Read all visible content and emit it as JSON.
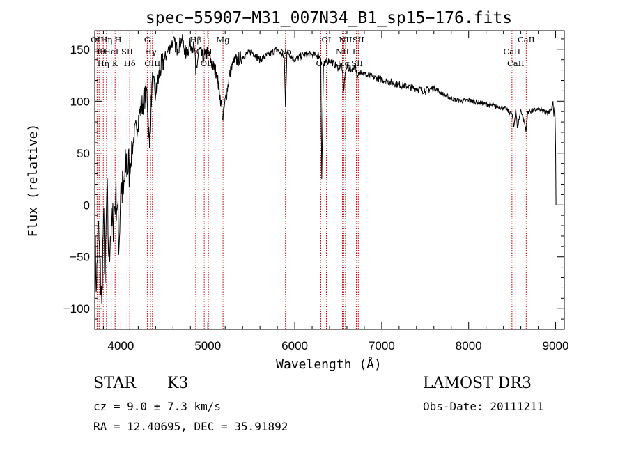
{
  "chart_data": {
    "type": "line",
    "title": "spec−55907−M31_007N34_B1_sp15−176.fits",
    "xlabel": "Wavelength (Å)",
    "ylabel": "Flux (relative)",
    "xlim": [
      3700,
      9100
    ],
    "ylim": [
      -120,
      168
    ],
    "xticks": [
      4000,
      5000,
      6000,
      7000,
      8000,
      9000
    ],
    "xtick_labels": [
      "4000",
      "5000",
      "6000",
      "7000",
      "8000",
      "9000"
    ],
    "yticks": [
      -100,
      -50,
      0,
      50,
      100,
      150
    ],
    "ytick_labels": [
      "−100",
      "−50",
      "0",
      "50",
      "100",
      "150"
    ],
    "grid": false,
    "series": [
      {
        "name": "flux",
        "color": "#000000",
        "x": [
          3700,
          3720,
          3740,
          3760,
          3780,
          3800,
          3820,
          3840,
          3860,
          3880,
          3900,
          3920,
          3940,
          3960,
          3980,
          4000,
          4030,
          4060,
          4100,
          4140,
          4180,
          4220,
          4260,
          4300,
          4330,
          4360,
          4400,
          4450,
          4500,
          4550,
          4600,
          4650,
          4700,
          4750,
          4800,
          4850,
          4861,
          4900,
          4950,
          5000,
          5050,
          5100,
          5150,
          5175,
          5190,
          5250,
          5300,
          5400,
          5500,
          5600,
          5700,
          5800,
          5880,
          5893,
          5910,
          6000,
          6100,
          6200,
          6280,
          6300,
          6310,
          6330,
          6400,
          6500,
          6540,
          6563,
          6580,
          6600,
          6650,
          6700,
          6717,
          6731,
          6760,
          6800,
          6900,
          7000,
          7100,
          7200,
          7300,
          7400,
          7500,
          7600,
          7700,
          7800,
          7900,
          8000,
          8100,
          8200,
          8300,
          8400,
          8498,
          8520,
          8542,
          8560,
          8600,
          8662,
          8680,
          8800,
          8900,
          8950,
          8970,
          8980,
          8990,
          8995,
          9000,
          9005
        ],
        "y": [
          -30,
          -80,
          -20,
          -60,
          -95,
          -10,
          -75,
          20,
          -50,
          -30,
          -20,
          -10,
          10,
          0,
          -40,
          20,
          10,
          40,
          35,
          60,
          75,
          90,
          100,
          110,
          55,
          120,
          105,
          130,
          140,
          150,
          158,
          150,
          160,
          145,
          155,
          150,
          125,
          150,
          140,
          148,
          135,
          128,
          100,
          82,
          95,
          125,
          138,
          143,
          148,
          140,
          145,
          150,
          142,
          95,
          148,
          140,
          145,
          145,
          144,
          140,
          25,
          135,
          140,
          132,
          136,
          110,
          128,
          133,
          130,
          135,
          120,
          125,
          130,
          126,
          123,
          121,
          118,
          116,
          114,
          112,
          110,
          113,
          107,
          103,
          100,
          101,
          99,
          97,
          95,
          94,
          88,
          75,
          93,
          74,
          92,
          72,
          90,
          92,
          89,
          92,
          100,
          85,
          95,
          80,
          55,
          0
        ]
      }
    ],
    "line_marks": [
      {
        "x": 3727,
        "label": "OII"
      },
      {
        "x": 3750,
        "label": "Hθ"
      },
      {
        "x": 3798,
        "label": "Hη"
      },
      {
        "x": 3835,
        "label": "Hη"
      },
      {
        "x": 3889,
        "label": "HeI"
      },
      {
        "x": 3934,
        "label": "K"
      },
      {
        "x": 3969,
        "label": "H"
      },
      {
        "x": 4072,
        "label": "SII"
      },
      {
        "x": 4102,
        "label": "Hδ"
      },
      {
        "x": 4304,
        "label": "G"
      },
      {
        "x": 4341,
        "label": "Hγ"
      },
      {
        "x": 4363,
        "label": "OIII"
      },
      {
        "x": 4861,
        "label": "Hβ"
      },
      {
        "x": 4959,
        "label": "OIII"
      },
      {
        "x": 5007,
        "label": "OIII"
      },
      {
        "x": 5175,
        "label": "Mg"
      },
      {
        "x": 5893,
        "label": "Na"
      },
      {
        "x": 6300,
        "label": "OI"
      },
      {
        "x": 6364,
        "label": "OI"
      },
      {
        "x": 6548,
        "label": "NII"
      },
      {
        "x": 6563,
        "label": "Hα"
      },
      {
        "x": 6583,
        "label": "NII"
      },
      {
        "x": 6708,
        "label": "Li"
      },
      {
        "x": 6717,
        "label": "SII"
      },
      {
        "x": 6731,
        "label": "SII"
      },
      {
        "x": 8498,
        "label": "CaII"
      },
      {
        "x": 8542,
        "label": "CaII"
      },
      {
        "x": 8662,
        "label": "CaII"
      }
    ],
    "mark_color": "#c00000"
  },
  "info": {
    "object_class": "STAR",
    "subclass": "K3",
    "survey": "LAMOST DR3",
    "cz": "cz = 9.0 ± 7.3 km/s",
    "obs_date": "Obs-Date: 20111211",
    "coords": "RA =  12.40695, DEC =  35.91892"
  }
}
